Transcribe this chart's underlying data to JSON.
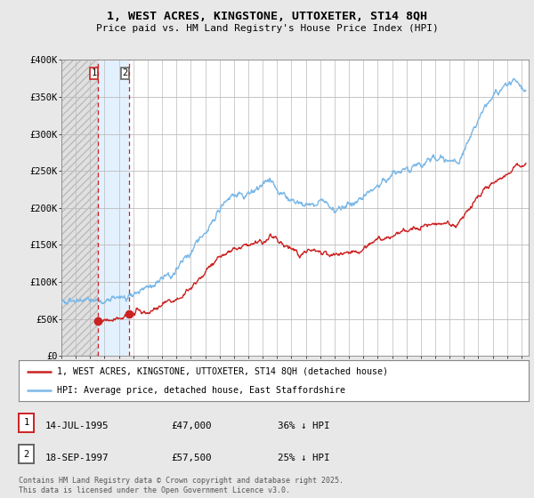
{
  "title1": "1, WEST ACRES, KINGSTONE, UTTOXETER, ST14 8QH",
  "title2": "Price paid vs. HM Land Registry's House Price Index (HPI)",
  "ylim": [
    0,
    400000
  ],
  "xlim_start": 1993.0,
  "xlim_end": 2025.5,
  "sale1_date": 1995.535,
  "sale1_price": 47000,
  "sale2_date": 1997.715,
  "sale2_price": 57500,
  "hpi_color": "#7ab8e8",
  "price_color": "#cc2222",
  "bg_color": "#e8e8e8",
  "plot_bg_color": "#ffffff",
  "legend_line1": "1, WEST ACRES, KINGSTONE, UTTOXETER, ST14 8QH (detached house)",
  "legend_line2": "HPI: Average price, detached house, East Staffordshire",
  "table_row1": [
    "1",
    "14-JUL-1995",
    "£47,000",
    "36% ↓ HPI"
  ],
  "table_row2": [
    "2",
    "18-SEP-1997",
    "£57,500",
    "25% ↓ HPI"
  ],
  "footnote": "Contains HM Land Registry data © Crown copyright and database right 2025.\nThis data is licensed under the Open Government Licence v3.0.",
  "hatch_color": "#d0d0d0",
  "shade_between_color": "#ddeeff",
  "sale1_label_color": "#cc2222",
  "sale2_label_color": "#666666",
  "hpi_breakpoints_x": [
    1993,
    1995,
    1997,
    1999,
    2001,
    2003,
    2004.5,
    2006,
    2007.5,
    2008.5,
    2009.5,
    2011,
    2012,
    2013,
    2015,
    2016.5,
    2018,
    2019.5,
    2020.5,
    2021.5,
    2022.5,
    2023.5,
    2024.5,
    2025.3
  ],
  "hpi_breakpoints_y": [
    70000,
    73000,
    78000,
    92000,
    115000,
    168000,
    210000,
    222000,
    237000,
    217000,
    202000,
    207000,
    197000,
    207000,
    228000,
    248000,
    258000,
    268000,
    262000,
    297000,
    342000,
    358000,
    372000,
    357000
  ],
  "price_breakpoints_x": [
    1995.535,
    1997,
    1999,
    2001,
    2003,
    2004.5,
    2006,
    2007.5,
    2008.5,
    2009.5,
    2011,
    2012,
    2013,
    2015,
    2016.5,
    2018,
    2019.5,
    2020.5,
    2021.5,
    2022.5,
    2023.5,
    2024.5,
    2025.3
  ],
  "price_breakpoints_y": [
    47000,
    52000,
    62000,
    78000,
    113000,
    143000,
    150000,
    161000,
    147000,
    137000,
    140000,
    134000,
    140000,
    155000,
    168000,
    175000,
    182000,
    178000,
    202000,
    232000,
    242000,
    252000,
    258000
  ]
}
